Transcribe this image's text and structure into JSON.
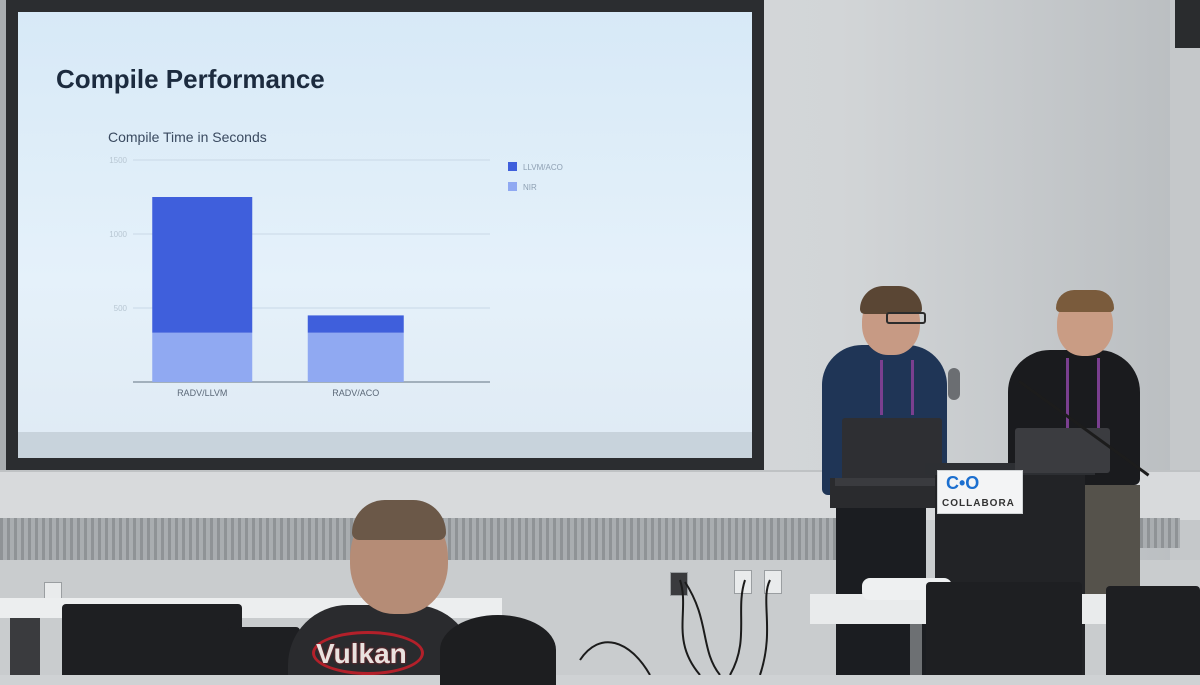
{
  "scene": {
    "description_colors": {
      "screen_bg": "#dfeef9",
      "title_color": "#1c2b3f",
      "bar_dark": "#3f5fdc",
      "bar_light": "#90a9f2"
    }
  },
  "slide": {
    "title": "Compile Performance"
  },
  "sponsor": {
    "logo_mark": "C•O",
    "logo_text": "COLLABORA"
  },
  "shirt": {
    "text": "Vulkan"
  },
  "chart_data": {
    "type": "bar",
    "stacked": true,
    "title": "Compile Time in Seconds",
    "categories": [
      "RADV/LLVM",
      "RADV/ACO"
    ],
    "series": [
      {
        "name": "NIR",
        "color": "#90a9f2",
        "values": [
          333,
          333
        ]
      },
      {
        "name": "LLVM/ACO",
        "color": "#3f5fdc",
        "values": [
          917,
          117
        ]
      }
    ],
    "ylim": [
      0,
      1500
    ],
    "ytick_labels": [
      "500",
      "1000",
      "1500"
    ],
    "grid": true,
    "legend": "top-right"
  }
}
